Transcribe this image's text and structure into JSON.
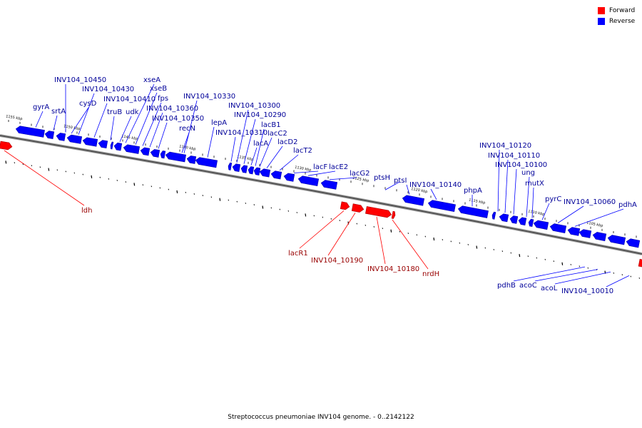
{
  "legend": {
    "forward_label": "Forward",
    "reverse_label": "Reverse",
    "forward_color": "#ff0000",
    "reverse_color": "#0000ff"
  },
  "caption": "Streptococcus pneumoniae INV104 genome. - 0..2142122",
  "colors": {
    "forward": "#ff0000",
    "reverse": "#0000ff",
    "reverse_label": "#000099",
    "forward_label": "#990000",
    "backbone": "#555555"
  },
  "kbp_labels": [
    "1155 kbp",
    "1150 kbp",
    "1145 kbp",
    "1140 kbp",
    "1135 kbp",
    "1130 kbp",
    "1125 kbp",
    "1120 kbp",
    "1115 kbp",
    "1110 kbp",
    "1105 kbp"
  ],
  "reverse_genes": [
    "INV104_10450",
    "gyrA",
    "srtA",
    "INV104_10430",
    "cysD",
    "INV104_10410",
    "xseA",
    "xseB",
    "fps",
    "truB",
    "udk",
    "INV104_10360",
    "INV104_10350",
    "INV104_10330",
    "recN",
    "lepA",
    "INV104_10300",
    "INV104_10290",
    "INV104_10310",
    "lacB1",
    "lacC2",
    "lacA",
    "lacD2",
    "lacT2",
    "lacF",
    "lacE2",
    "lacG2",
    "ptsH",
    "ptsI",
    "INV104_10140",
    "phpA",
    "INV104_10120",
    "INV104_10110",
    "INV104_10100",
    "ung",
    "mutX",
    "pyrC",
    "INV104_10060",
    "pdhA",
    "pdhB",
    "acoC",
    "acoL",
    "INV104_10010"
  ],
  "forward_genes": [
    "ldh",
    "lacR1",
    "INV104_10190",
    "INV104_10180",
    "nrdH"
  ]
}
